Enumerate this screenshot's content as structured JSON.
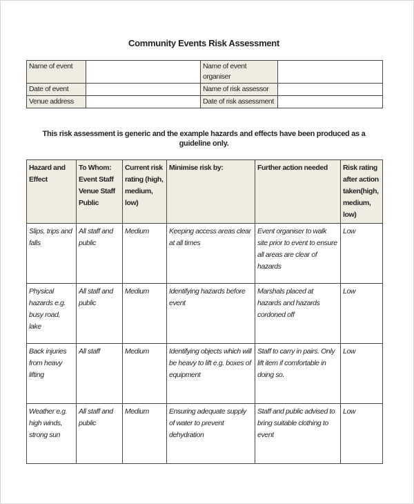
{
  "title": "Community Events Risk Assessment",
  "info": [
    {
      "label": "Name of event",
      "value": "",
      "label2": "Name of event organiser",
      "value2": ""
    },
    {
      "label": "Date of event",
      "value": "",
      "label2": "Name of risk assessor",
      "value2": ""
    },
    {
      "label": "Venue address",
      "value": "",
      "label2": "Date of risk assessment",
      "value2": ""
    }
  ],
  "note": "This risk assessment is generic and the example hazards and effects have been produced as a guideline only.",
  "headers": [
    "Hazard and Effect",
    "To Whom: Event Staff Venue Staff Public",
    "Current risk rating (high, medium, low)",
    "Minimise risk by:",
    "Further action needed",
    "Risk rating after action taken(high, medium, low)"
  ],
  "rows": [
    [
      "Slips, trips and falls",
      "All staff and public",
      "Medium",
      "Keeping access areas clear at all times",
      "Event organiser to walk site prior to event to ensure all areas are clear of hazards",
      "Low"
    ],
    [
      "Physical hazards e.g. busy road, lake",
      "All staff and public",
      "Medium",
      "Identifying hazards before event",
      "Marshals placed at hazards and hazards cordoned off",
      "Low"
    ],
    [
      "Back injuries from heavy lifting",
      "All staff",
      "Medium",
      "Identifying objects which will be heavy to lift e.g. boxes of equipment",
      "Staff to carry in pairs. Only lift item if comfortable in doing so.",
      "Low"
    ],
    [
      "Weather e.g. high winds, strong sun",
      "All staff and public",
      "Medium",
      "Ensuring adequate supply of water to prevent dehydration",
      "Staff and public advised to bring suitable clothing to event",
      "Low"
    ]
  ]
}
